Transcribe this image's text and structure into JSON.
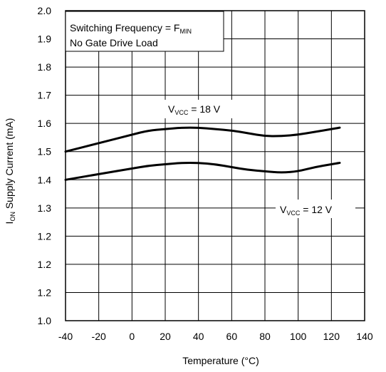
{
  "chart_data": {
    "type": "line",
    "xlabel": "Temperature  (°C)",
    "ylabel_main": "I",
    "ylabel_sub": "ON",
    "ylabel_rest": " Supply Current (mA)",
    "xlim": [
      -40,
      140
    ],
    "x_ticks": [
      "-40",
      "-20",
      "0",
      "20",
      "40",
      "60",
      "80",
      "100",
      "120",
      "140"
    ],
    "y_ticks": [
      "1.0",
      "1.2",
      "1.2",
      "1.2",
      "1.3",
      "1.4",
      "1.5",
      "1.6",
      "1.7",
      "1.8",
      "1.9",
      "2.0"
    ],
    "grid": true,
    "series": [
      {
        "label_main": "V",
        "label_sub": "VCC",
        "label_rest": " = 18 V",
        "x": [
          -40,
          -20,
          0,
          10,
          20,
          30,
          40,
          50,
          60,
          70,
          80,
          90,
          100,
          110,
          120,
          125
        ],
        "y": [
          1.5,
          1.53,
          1.56,
          1.575,
          1.58,
          1.585,
          1.585,
          1.58,
          1.575,
          1.565,
          1.555,
          1.555,
          1.56,
          1.57,
          1.58,
          1.585
        ]
      },
      {
        "label_main": "V",
        "label_sub": "VCC",
        "label_rest": " = 12 V",
        "x": [
          -40,
          -20,
          0,
          10,
          20,
          30,
          40,
          50,
          60,
          70,
          80,
          90,
          100,
          110,
          120,
          125
        ],
        "y": [
          1.4,
          1.42,
          1.44,
          1.45,
          1.455,
          1.46,
          1.46,
          1.455,
          1.445,
          1.435,
          1.43,
          1.425,
          1.43,
          1.445,
          1.455,
          1.46
        ]
      }
    ],
    "annotation": {
      "line1_main": "Switching Frequency = F",
      "line1_sub": "MIN",
      "line2": "No Gate Drive Load"
    }
  }
}
